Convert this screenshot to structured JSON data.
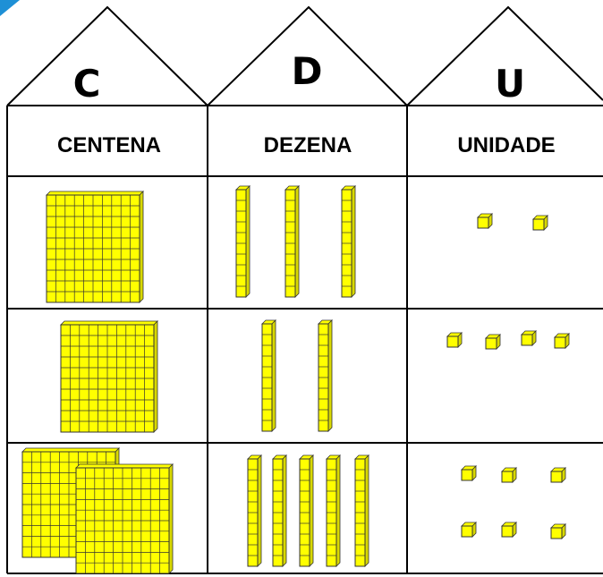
{
  "roof": {
    "letters": [
      "C",
      "D",
      "U"
    ]
  },
  "table": {
    "headers": [
      "CENTENA",
      "DEZENA",
      "UNIDADE"
    ]
  }
}
